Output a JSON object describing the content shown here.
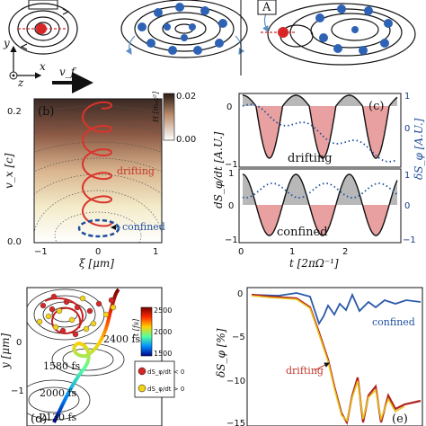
{
  "figure": {
    "panel_labels": {
      "b": "(b)",
      "c": "(c)",
      "d": "(d)",
      "e": "(e)",
      "A": "A"
    },
    "axis_labels": {
      "y": "y",
      "x": "x",
      "z": "z",
      "vf": "v_f"
    }
  },
  "panel_b": {
    "ylabel": "v_x [c]",
    "xlabel": "ξ [μm]",
    "xticks": [
      "−1",
      "0",
      "1"
    ],
    "yticks": [
      "0.0",
      "0.2"
    ],
    "colorbar_label": "H [mₑc²]",
    "colorbar_ticks": [
      "0.02",
      "0.00"
    ],
    "annotations": [
      "drifting",
      "confined"
    ]
  },
  "panel_c": {
    "ylabel": "dS_φ/dt [A.U.]",
    "ylabel_right": "δS_φ [A.U.]",
    "xlabel": "t [2πΩ⁻¹]",
    "xticks": [
      "0",
      "1",
      "2"
    ],
    "yticks_top": [
      "0",
      "−1"
    ],
    "yticks_bottom": [
      "1",
      "0",
      "−1"
    ],
    "yticks_right_top": [
      "1",
      "0"
    ],
    "yticks_right_bottom": [
      "1",
      "0",
      "−1"
    ],
    "annotations": [
      "drifting",
      "confined"
    ]
  },
  "panel_d": {
    "ylabel": "y [μm]",
    "yticks": [
      "0",
      "−1"
    ],
    "colorbar_label": "t [fs]",
    "colorbar_ticks": [
      "2500",
      "2000",
      "1500"
    ],
    "time_labels": [
      "2400 fs",
      "1580 fs",
      "2000 fs",
      "2130 fs"
    ],
    "legend": [
      "dS_φ/dt < 0",
      "dS_φ/dt > 0"
    ],
    "colors": {
      "neg": "#d62728",
      "pos": "#f2d21b"
    }
  },
  "panel_e": {
    "ylabel": "δS_φ [%]",
    "yticks": [
      "0",
      "−5",
      "−10",
      "−15"
    ],
    "annotations": [
      "confined",
      "drifting"
    ]
  },
  "colors": {
    "red": "#d62728",
    "blue": "#1f4e9c",
    "fill_red": "#e9a0a0",
    "fill_gray": "#b8b8b8"
  }
}
